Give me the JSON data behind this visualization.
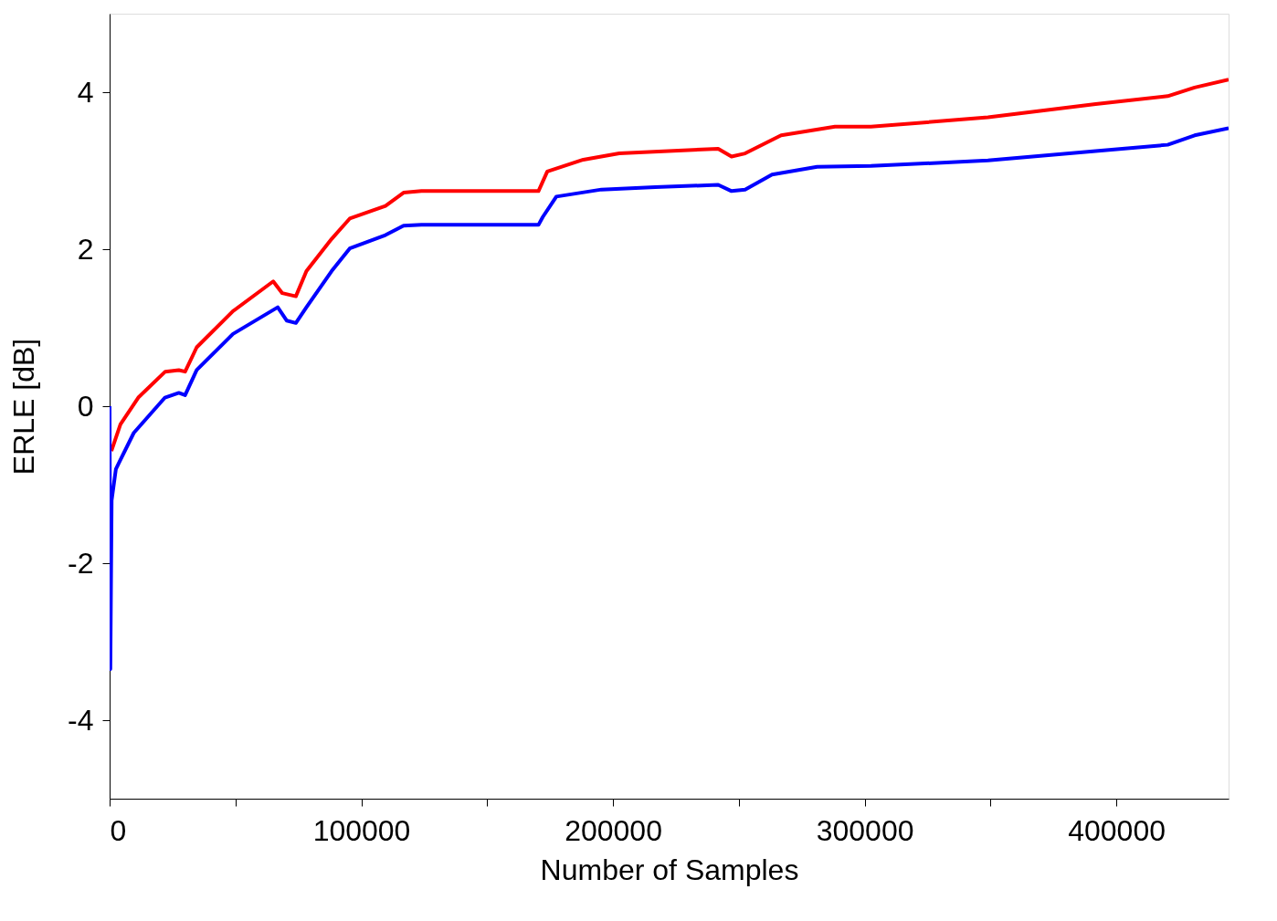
{
  "chart_data": {
    "type": "line",
    "xlabel": "Number of Samples",
    "ylabel": "ERLE [dB]",
    "xlim": [
      0,
      444600
    ],
    "ylim": [
      -5,
      5
    ],
    "xticks": [
      0,
      {
        "value": 50000,
        "label": null
      },
      100000,
      {
        "value": 150000,
        "label": null
      },
      200000,
      {
        "value": 250000,
        "label": null
      },
      300000,
      {
        "value": 350000,
        "label": null
      },
      400000
    ],
    "yticks": [
      -4,
      -2,
      0,
      2,
      4
    ],
    "grid": false,
    "marker": "none",
    "line_style": "solid",
    "series": [
      {
        "color": "#ff0000",
        "x": [
          700,
          4300,
          11400,
          22100,
          27500,
          30000,
          34600,
          49000,
          65000,
          68600,
          74000,
          78200,
          88200,
          95400,
          109600,
          116800,
          123900,
          170400,
          173900,
          188200,
          202500,
          241800,
          247100,
          252500,
          266800,
          288200,
          302500,
          349000,
          391800,
          420400,
          431100,
          444600
        ],
        "values": [
          -0.57,
          -0.23,
          0.11,
          0.44,
          0.46,
          0.44,
          0.75,
          1.21,
          1.59,
          1.44,
          1.4,
          1.72,
          2.13,
          2.39,
          2.55,
          2.72,
          2.74,
          2.74,
          2.99,
          3.14,
          3.22,
          3.28,
          3.18,
          3.22,
          3.45,
          3.56,
          3.56,
          3.68,
          3.85,
          3.95,
          4.06,
          4.16
        ]
      },
      {
        "color": "#0000ff",
        "x": [
          0,
          300,
          800,
          2500,
          9600,
          22000,
          27500,
          30000,
          34600,
          49000,
          66800,
          70400,
          74000,
          78200,
          88200,
          95400,
          109600,
          116800,
          123900,
          170400,
          172100,
          177500,
          195400,
          216800,
          241800,
          247100,
          252500,
          263200,
          281100,
          302500,
          349000,
          391800,
          420400,
          431100,
          444600
        ],
        "values": [
          0,
          -3.35,
          -1.2,
          -0.8,
          -0.34,
          0.11,
          0.17,
          0.14,
          0.46,
          0.92,
          1.26,
          1.09,
          1.06,
          1.26,
          1.72,
          2.01,
          2.18,
          2.3,
          2.31,
          2.31,
          2.41,
          2.67,
          2.76,
          2.79,
          2.82,
          2.74,
          2.76,
          2.95,
          3.05,
          3.06,
          3.13,
          3.25,
          3.33,
          3.45,
          3.54
        ]
      }
    ]
  }
}
